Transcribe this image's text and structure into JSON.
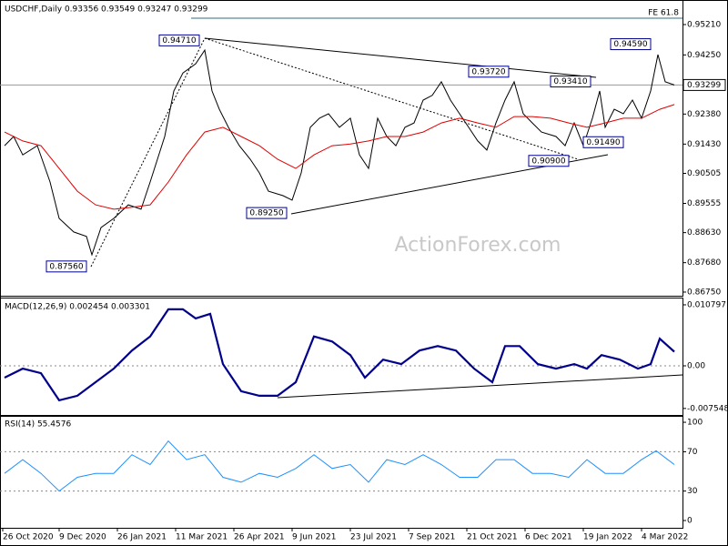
{
  "chart_data": [
    {
      "type": "line",
      "title": "USDCHF,Daily  0.93356 0.93549 0.93247 0.93299",
      "watermark": "ActionForex.com",
      "xlim": [
        -0.5,
        374.5
      ],
      "ylim": [
        0.86634,
        0.95987
      ],
      "yticks": [
        {
          "value": 0.9521,
          "label": "0.95210"
        },
        {
          "value": 0.9425,
          "label": "0.94250"
        },
        {
          "value": 0.9238,
          "label": "0.92380"
        },
        {
          "value": 0.9143,
          "label": "0.91430"
        },
        0.90505,
        0.89555,
        {
          "value": 0.8863,
          "label": "0.88630"
        },
        {
          "value": 0.8768,
          "label": "0.87680"
        },
        {
          "value": 0.8675,
          "label": "0.86750"
        }
      ],
      "last_price": 0.93299,
      "fe_level": {
        "value": 0.9541,
        "label": "FE 61.8"
      },
      "series": [
        {
          "color": "#000000",
          "line_width": 1,
          "x": [
            2,
            7,
            12,
            20,
            27,
            32,
            40,
            47,
            50,
            55,
            62,
            70,
            77,
            82,
            90,
            95,
            100,
            107,
            112,
            116,
            120,
            125,
            131,
            137,
            142,
            147,
            155,
            160,
            165,
            170,
            175,
            180,
            186,
            192,
            197,
            202,
            207,
            212,
            217,
            222,
            227,
            232,
            237,
            242,
            247,
            252,
            257,
            262,
            267,
            272,
            277,
            282,
            287,
            292,
            297,
            305,
            310,
            315,
            320,
            325,
            329,
            332,
            337,
            342,
            347,
            352,
            357,
            361,
            365,
            370
          ],
          "values": [
            0.9138,
            0.9167,
            0.9109,
            0.9138,
            0.9023,
            0.8908,
            0.8865,
            0.8851,
            0.8793,
            0.8879,
            0.8908,
            0.8951,
            0.8937,
            0.9023,
            0.9167,
            0.9311,
            0.9368,
            0.9397,
            0.944,
            0.9311,
            0.9253,
            0.9196,
            0.9138,
            0.9095,
            0.9052,
            0.8994,
            0.898,
            0.8966,
            0.9052,
            0.9196,
            0.9225,
            0.9239,
            0.9196,
            0.9225,
            0.9109,
            0.9066,
            0.9225,
            0.9167,
            0.9138,
            0.9196,
            0.921,
            0.9282,
            0.9297,
            0.934,
            0.9282,
            0.9239,
            0.9196,
            0.9153,
            0.9124,
            0.921,
            0.9282,
            0.934,
            0.9239,
            0.921,
            0.9181,
            0.9167,
            0.9138,
            0.921,
            0.9138,
            0.9225,
            0.9311,
            0.9196,
            0.9253,
            0.9239,
            0.9282,
            0.9225,
            0.9311,
            0.9426,
            0.934,
            0.933
          ]
        },
        {
          "color": "#e00000",
          "line_width": 1,
          "x": [
            2,
            12,
            22,
            32,
            42,
            52,
            62,
            72,
            82,
            92,
            102,
            112,
            122,
            132,
            142,
            152,
            162,
            172,
            182,
            192,
            202,
            212,
            222,
            232,
            242,
            252,
            262,
            272,
            282,
            292,
            302,
            312,
            322,
            332,
            342,
            352,
            362,
            370
          ],
          "values": [
            0.9181,
            0.9153,
            0.9138,
            0.9066,
            0.8994,
            0.8951,
            0.8937,
            0.8943,
            0.8951,
            0.9023,
            0.9109,
            0.9181,
            0.9196,
            0.9167,
            0.9138,
            0.9095,
            0.9066,
            0.9109,
            0.9138,
            0.9143,
            0.9153,
            0.9167,
            0.9167,
            0.9181,
            0.921,
            0.9225,
            0.921,
            0.9196,
            0.923,
            0.923,
            0.9225,
            0.921,
            0.9196,
            0.921,
            0.9225,
            0.9225,
            0.9253,
            0.9268
          ]
        }
      ],
      "annotations": [
        {
          "x": 112,
          "value": 0.9471,
          "label": "0.94710"
        },
        {
          "x": 50,
          "value": 0.8756,
          "label": "0.87560"
        },
        {
          "x": 160,
          "value": 0.8925,
          "label": "0.89250"
        },
        {
          "x": 282,
          "value": 0.9372,
          "label": "0.93720"
        },
        {
          "x": 327,
          "value": 0.9341,
          "label": "0.93410"
        },
        {
          "x": 360,
          "value": 0.9459,
          "label": "0.94590"
        },
        {
          "x": 320,
          "value": 0.9149,
          "label": "0.91490"
        },
        {
          "x": 315,
          "value": 0.909,
          "label": "0.90900"
        }
      ]
    },
    {
      "type": "line",
      "title": "MACD(12,26,9) 0.002454 0.003301",
      "xlim": [
        -0.5,
        374.5
      ],
      "ylim": [
        -0.0087,
        0.01192
      ],
      "yticks": [
        0.010797,
        {
          "value": 0,
          "label": "0.00"
        },
        -0.007548
      ],
      "levels": [
        0
      ],
      "series": [
        {
          "color": "#00008b",
          "line_width": 2.2,
          "x": [
            2,
            12,
            22,
            32,
            42,
            52,
            62,
            72,
            82,
            92,
            100,
            107,
            115,
            122,
            132,
            142,
            152,
            162,
            172,
            182,
            192,
            200,
            210,
            220,
            230,
            240,
            250,
            260,
            270,
            277,
            285,
            295,
            305,
            315,
            322,
            330,
            340,
            350,
            357,
            362,
            370
          ],
          "values": [
            -0.0021,
            -0.0005,
            -0.0013,
            -0.0061,
            -0.0053,
            -0.0029,
            -0.0005,
            0.0027,
            0.0052,
            0.01,
            0.01,
            0.0084,
            0.0092,
            0.0003,
            -0.0045,
            -0.0053,
            -0.0053,
            -0.0029,
            0.0052,
            0.0043,
            0.0019,
            -0.0021,
            0.0011,
            0.0003,
            0.0027,
            0.0035,
            0.0027,
            -0.0005,
            -0.0029,
            0.0035,
            0.0035,
            0.0003,
            -0.0005,
            0.0003,
            -0.0005,
            0.0019,
            0.0011,
            -0.0005,
            0.0003,
            0.0048,
            0.0025
          ]
        }
      ]
    },
    {
      "type": "line",
      "title": "RSI(14) 55.4576",
      "xlim": [
        -0.5,
        374.5
      ],
      "ylim": [
        -7.4,
        105.6
      ],
      "yticks": [
        100,
        70,
        30,
        0
      ],
      "levels": [
        70,
        30
      ],
      "xticks": [
        {
          "value": 1,
          "label": "26 Oct 2020"
        },
        {
          "value": 32,
          "label": "9 Dec 2020"
        },
        {
          "value": 64,
          "label": "26 Jan 2021"
        },
        {
          "value": 96,
          "label": "11 Mar 2021"
        },
        {
          "value": 128,
          "label": "26 Apr 2021"
        },
        {
          "value": 160,
          "label": "9 Jun 2021"
        },
        {
          "value": 192,
          "label": "23 Jul 2021"
        },
        {
          "value": 224,
          "label": "7 Sep 2021"
        },
        {
          "value": 256,
          "label": "21 Oct 2021"
        },
        {
          "value": 288,
          "label": "6 Dec 2021"
        },
        {
          "value": 320,
          "label": "19 Jan 2022"
        },
        {
          "value": 352,
          "label": "4 Mar 2022"
        }
      ],
      "series": [
        {
          "color": "#1e90ff",
          "line_width": 1,
          "x": [
            2,
            12,
            22,
            32,
            42,
            52,
            62,
            72,
            82,
            92,
            102,
            112,
            122,
            132,
            142,
            152,
            162,
            172,
            182,
            192,
            202,
            212,
            222,
            232,
            242,
            252,
            262,
            272,
            282,
            292,
            302,
            312,
            322,
            332,
            342,
            352,
            360,
            370
          ],
          "values": [
            48,
            62,
            48,
            30,
            44,
            48,
            48,
            67,
            57,
            81,
            62,
            67,
            44,
            39,
            48,
            44,
            53,
            67,
            53,
            57,
            39,
            62,
            57,
            67,
            57,
            44,
            44,
            62,
            62,
            48,
            48,
            44,
            62,
            48,
            48,
            62,
            71,
            57
          ]
        }
      ]
    }
  ]
}
